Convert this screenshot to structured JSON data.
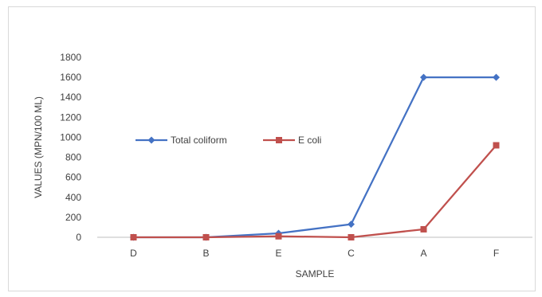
{
  "chart_data": {
    "type": "line",
    "title": "",
    "xlabel": "SAMPLE",
    "ylabel": "VALUES  (MPN/100 ML)",
    "categories": [
      "D",
      "B",
      "E",
      "C",
      "A",
      "F"
    ],
    "ylim": [
      0,
      1800
    ],
    "yticks": [
      0,
      200,
      400,
      600,
      800,
      1000,
      1200,
      1400,
      1600,
      1800
    ],
    "grid": false,
    "legend_position": "middle-left",
    "series": [
      {
        "name": "Total coliform",
        "color": "#4472c4",
        "marker": "diamond",
        "values": [
          0,
          0,
          40,
          130,
          1600,
          1600
        ]
      },
      {
        "name": "E coli",
        "color": "#c0504d",
        "marker": "square",
        "values": [
          0,
          0,
          10,
          0,
          80,
          920
        ]
      }
    ]
  }
}
